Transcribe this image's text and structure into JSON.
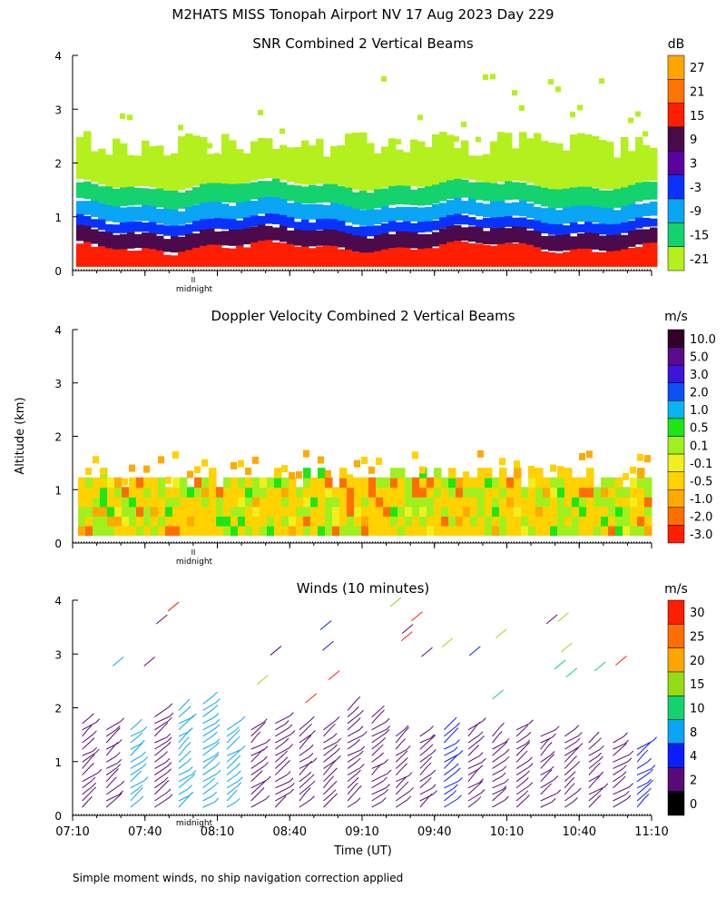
{
  "figure": {
    "title": "M2HATS MISS Tonopah Airport NV  17 Aug 2023 Day 229",
    "ylabel": "Altitude (km)",
    "xlabel": "Time (UT)",
    "footnote": "Simple moment winds, no ship navigation correction applied",
    "midnight_label": "midnight",
    "midnight_marker": "II"
  },
  "chart_data": [
    {
      "type": "heatmap",
      "title": "SNR Combined 2 Vertical Beams",
      "xlabel": "",
      "ylabel": "Altitude (km)",
      "x_range": [
        "07:10",
        "11:10"
      ],
      "y_range": [
        0,
        4
      ],
      "yticks": [
        "0",
        "1",
        "2",
        "3",
        "4"
      ],
      "colorbar_unit": "dB",
      "colorbar_labels": [
        "27",
        "21",
        "15",
        "9",
        "3",
        "-3",
        "-9",
        "-15",
        "-21"
      ],
      "colorbar_colors": [
        "#ffa500",
        "#ff7300",
        "#ff1e00",
        "#4b0a4b",
        "#5a00a0",
        "#0a32ff",
        "#0aa5f5",
        "#14d26e",
        "#b4f01e"
      ],
      "layers": [
        {
          "alt_top_km": 0.45,
          "color": "#ff1e00",
          "label": "15 to 27 dB"
        },
        {
          "alt_top_km": 0.75,
          "color": "#4b0a4b",
          "label": "9 dB"
        },
        {
          "alt_top_km": 0.95,
          "color": "#0a32ff",
          "label": "-3 dB"
        },
        {
          "alt_top_km": 1.25,
          "color": "#0aa5f5",
          "label": "-9 dB"
        },
        {
          "alt_top_km": 1.6,
          "color": "#14d26e",
          "label": "-15 dB"
        },
        {
          "alt_top_km": 2.4,
          "color": "#b4f01e",
          "label": "-21 dB"
        }
      ]
    },
    {
      "type": "heatmap",
      "title": "Doppler Velocity Combined 2 Vertical Beams",
      "xlabel": "",
      "ylabel": "Altitude (km)",
      "x_range": [
        "07:10",
        "11:10"
      ],
      "y_range": [
        0,
        4
      ],
      "yticks": [
        "0",
        "1",
        "2",
        "3",
        "4"
      ],
      "colorbar_unit": "m/s",
      "colorbar_labels": [
        "10.0",
        "5.0",
        "3.0",
        "2.0",
        "1.0",
        "0.5",
        "0.1",
        "-0.1",
        "-0.5",
        "-1.0",
        "-2.0",
        "-3.0"
      ],
      "colorbar_colors": [
        "#320028",
        "#5a0a8c",
        "#3c14dc",
        "#0a50f5",
        "#0ab4f0",
        "#1ee614",
        "#a0f01e",
        "#f0f01e",
        "#ffd200",
        "#ffaa00",
        "#ff6e00",
        "#ff1e00"
      ],
      "layers": [
        {
          "alt_top_km": 1.1,
          "color": "#ffd200",
          "label": "-0.5 m/s"
        },
        {
          "alt_top_km": 1.5,
          "color": "#a0f01e",
          "label": "0.1 m/s"
        }
      ]
    },
    {
      "type": "barbs",
      "title": "Winds (10 minutes)",
      "xlabel": "Time (UT)",
      "ylabel": "Altitude (km)",
      "x_range": [
        "07:10",
        "11:10"
      ],
      "y_range": [
        0,
        4
      ],
      "xticks": [
        "07:10",
        "07:40",
        "08:10",
        "08:40",
        "09:10",
        "09:40",
        "10:10",
        "10:40",
        "11:10"
      ],
      "yticks": [
        "0",
        "1",
        "2",
        "3",
        "4"
      ],
      "colorbar_unit": "m/s",
      "colorbar_labels": [
        "30",
        "25",
        "20",
        "15",
        "10",
        "8",
        "4",
        "2",
        "0"
      ],
      "colorbar_colors": [
        "#ff1e00",
        "#ff6e00",
        "#ffa500",
        "#96dc14",
        "#14d26e",
        "#0aa5f5",
        "#0a1eff",
        "#5a0a78",
        "#000000"
      ],
      "profile_times": [
        "07:14",
        "07:24",
        "07:34",
        "07:44",
        "07:54",
        "08:04",
        "08:14",
        "08:24",
        "08:34",
        "08:44",
        "08:54",
        "09:04",
        "09:14",
        "09:24",
        "09:34",
        "09:44",
        "09:54",
        "10:04",
        "10:14",
        "10:24",
        "10:34",
        "10:44",
        "10:54",
        "11:04"
      ],
      "profile_top_km": [
        1.8,
        1.6,
        1.7,
        1.9,
        2.0,
        2.1,
        1.6,
        1.7,
        1.8,
        1.6,
        1.7,
        2.0,
        1.9,
        1.5,
        1.5,
        1.6,
        1.7,
        1.5,
        1.6,
        1.5,
        1.5,
        1.4,
        1.4,
        1.3
      ],
      "profile_colors": [
        "#5a0a78",
        "#5a0a78",
        "#0aa5f5",
        "#5a0a78",
        "#0aa5f5",
        "#0aa5f5",
        "#0aa5f5",
        "#5a0a78",
        "#5a0a78",
        "#5a0a78",
        "#5a0a78",
        "#5a0a78",
        "#5a0a78",
        "#5a0a78",
        "#5a0a78",
        "#0a1eff",
        "#5a0a78",
        "#5a0a78",
        "#5a0a78",
        "#5a0a78",
        "#5a0a78",
        "#5a0a78",
        "#5a0a78",
        "#0a1eff"
      ]
    }
  ]
}
